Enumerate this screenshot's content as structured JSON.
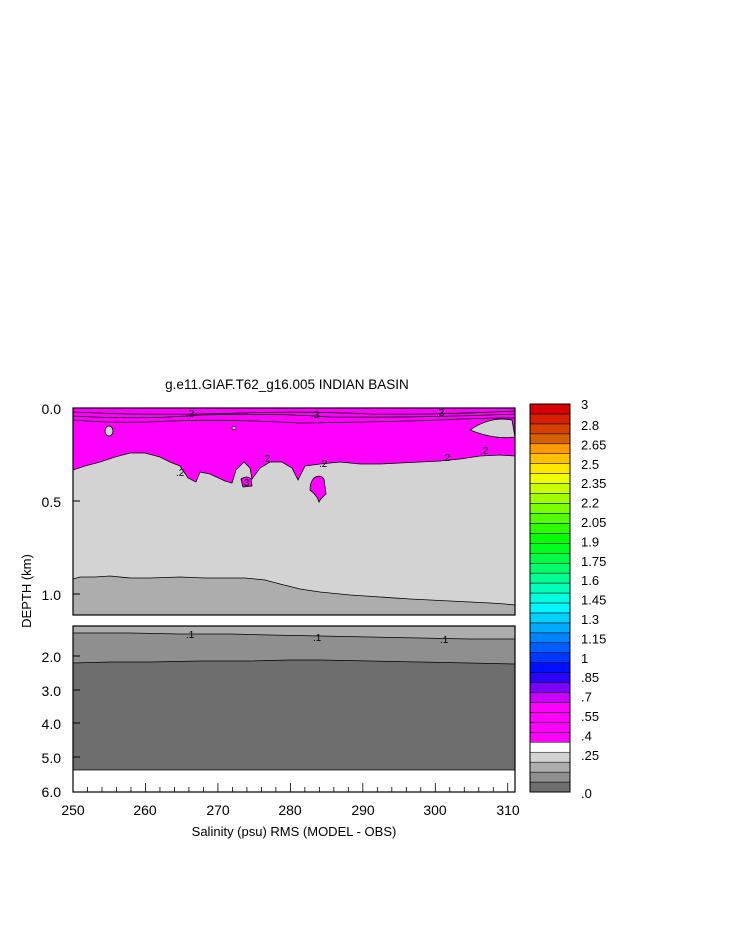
{
  "chart_data": {
    "type": "heatmap",
    "title": "g.e11.GIAF.T62_g16.005 INDIAN BASIN",
    "xlabel": "Salinity (psu) RMS (MODEL - OBS)",
    "ylabel": "DEPTH (km)",
    "x_ticks": [
      "250",
      "260",
      "270",
      "280",
      "290",
      "300",
      "310"
    ],
    "xlim": [
      250,
      311
    ],
    "upper_panel": {
      "ylim": [
        0.0,
        1.12
      ],
      "y_ticks": [
        "0.0",
        "0.5",
        "1.0"
      ],
      "contour_labels": [
        ".3",
        ".3",
        ".3",
        ".3",
        ".2",
        ".2",
        ".2",
        ".2",
        ".2"
      ]
    },
    "lower_panel": {
      "ylim": [
        1.5,
        6.0
      ],
      "y_ticks": [
        "2.0",
        "3.0",
        "4.0",
        "5.0",
        "6.0"
      ],
      "contour_labels": [
        ".1",
        ".1",
        ".1"
      ]
    },
    "colorbar_labels": [
      "3",
      "2.8",
      "2.65",
      "2.5",
      "2.35",
      "2.2",
      "2.05",
      "1.9",
      "1.75",
      "1.6",
      "1.45",
      "1.3",
      "1.15",
      "1",
      ".85",
      ".7",
      ".55",
      ".4",
      ".25",
      ".0"
    ],
    "colors": {
      "magenta": "#ff00ff",
      "light_gray": "#d3d3d3",
      "mid_gray": "#adadad",
      "gray": "#8f8f8f",
      "dark_gray": "#6e6e6e"
    }
  }
}
